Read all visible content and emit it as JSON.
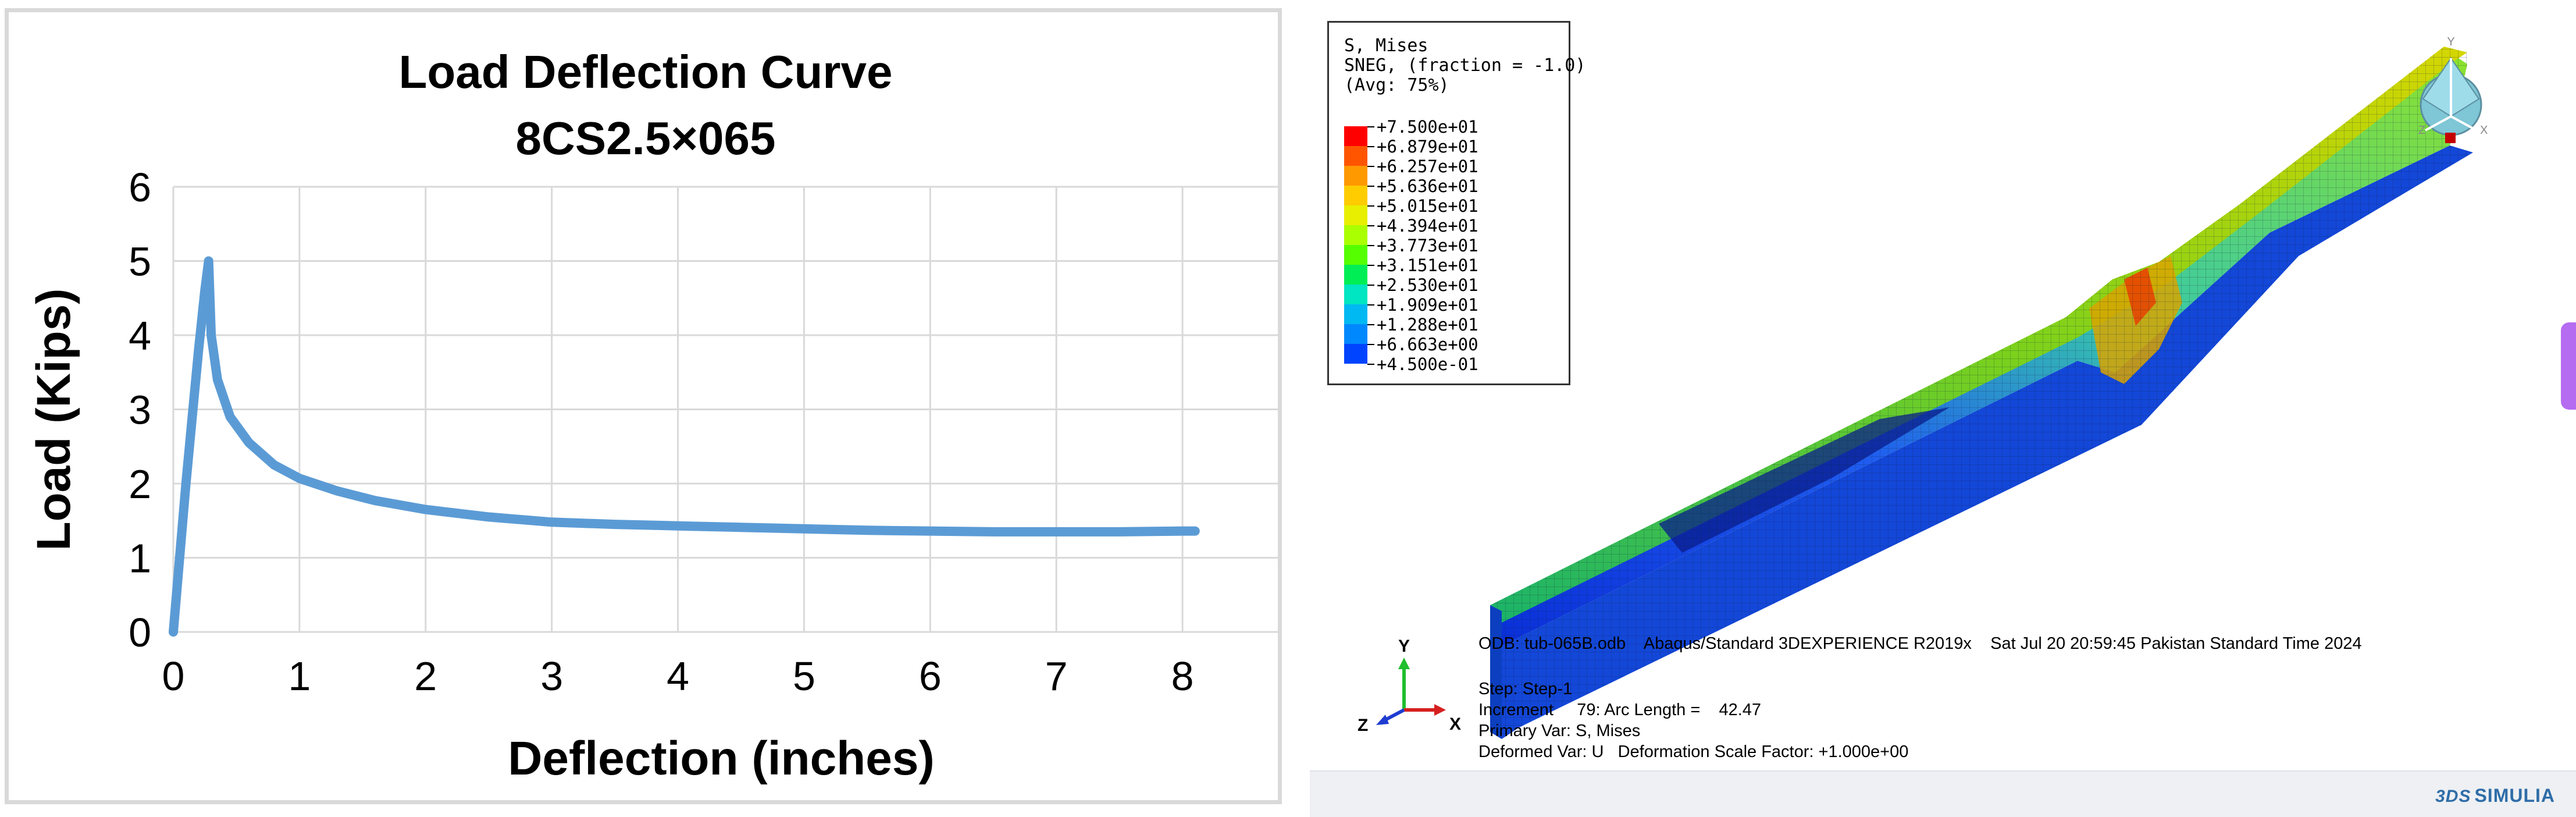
{
  "chart_data": {
    "type": "line",
    "title": "Load Deflection Curve",
    "subtitle": "8CS2.5×065",
    "xlabel": "Deflection (inches)",
    "ylabel": "Load (Kips)",
    "xlim": [
      0,
      9
    ],
    "ylim": [
      0,
      6
    ],
    "xticks": [
      "0",
      "1",
      "2",
      "3",
      "4",
      "5",
      "6",
      "7",
      "8",
      "9"
    ],
    "yticks": [
      "0",
      "1",
      "2",
      "3",
      "4",
      "5",
      "6"
    ],
    "grid": true,
    "legend": "none",
    "series": [
      {
        "color": "#5b9bd5",
        "x": [
          0,
          0.05,
          0.1,
          0.15,
          0.2,
          0.25,
          0.28,
          0.3,
          0.35,
          0.45,
          0.6,
          0.8,
          1.0,
          1.3,
          1.6,
          2.0,
          2.5,
          3.0,
          3.5,
          4.0,
          4.5,
          5.0,
          5.5,
          6.0,
          6.5,
          7.0,
          7.5,
          8.0,
          8.1
        ],
        "y": [
          0,
          1.0,
          2.0,
          2.9,
          3.8,
          4.6,
          5.0,
          4.0,
          3.4,
          2.9,
          2.55,
          2.25,
          2.07,
          1.9,
          1.77,
          1.65,
          1.55,
          1.48,
          1.45,
          1.43,
          1.41,
          1.39,
          1.37,
          1.36,
          1.35,
          1.35,
          1.35,
          1.36,
          1.36
        ]
      }
    ]
  },
  "viewport": {
    "legend": {
      "title": "S, Mises",
      "subtitle1": "SNEG, (fraction = -1.0)",
      "subtitle2": "(Avg: 75%)",
      "values": [
        "+7.500e+01",
        "+6.879e+01",
        "+6.257e+01",
        "+5.636e+01",
        "+5.015e+01",
        "+4.394e+01",
        "+3.773e+01",
        "+3.151e+01",
        "+2.530e+01",
        "+1.909e+01",
        "+1.288e+01",
        "+6.663e+00",
        "+4.500e-01"
      ],
      "colors": [
        "#ff0000",
        "#ff5500",
        "#ff9900",
        "#ffcc00",
        "#e8ef00",
        "#aaff00",
        "#55ff00",
        "#00ee55",
        "#00e5c2",
        "#00b8f2",
        "#0088ff",
        "#0044ff",
        "#0000ee"
      ]
    },
    "info_lines": [
      "ODB: tub-065B.odb    Abaqus/Standard 3DEXPERIENCE R2019x    Sat Jul 20 20:59:45 Pakistan Standard Time 2024",
      "Step: Step-1",
      "Increment     79: Arc Length =    42.47",
      "Primary Var: S, Mises",
      "Deformed Var: U   Deformation Scale Factor: +1.000e+00"
    ],
    "triad": {
      "x": "X",
      "y": "Y",
      "z": "Z"
    },
    "orient_labels": {
      "y": "Y",
      "z": "Z",
      "x": "X"
    },
    "brand": "SIMULIA",
    "brand_mark": "3DS"
  }
}
